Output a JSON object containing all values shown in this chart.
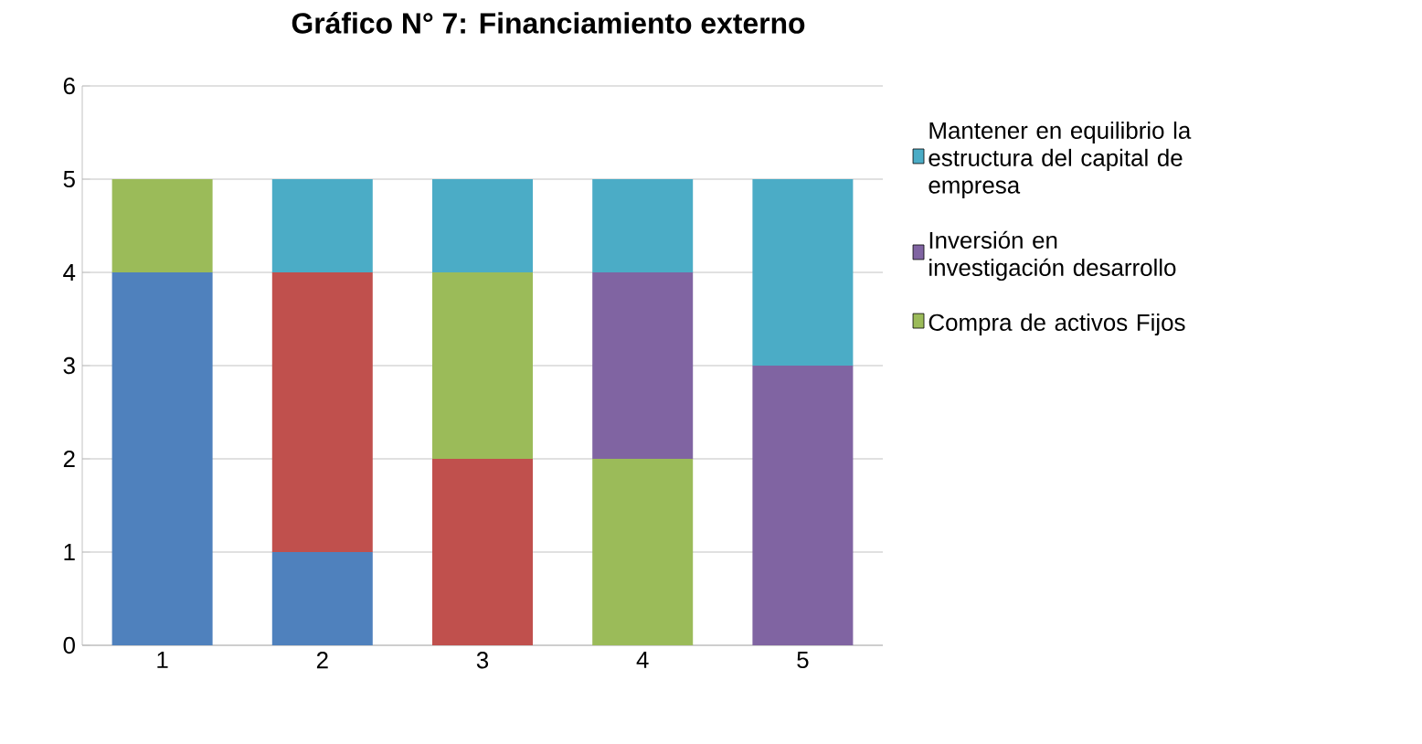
{
  "chart_data": {
    "type": "bar",
    "stacked": true,
    "title": "Gráfico N° 7: Financiamiento externo",
    "categories": [
      "1",
      "2",
      "3",
      "4",
      "5"
    ],
    "series": [
      {
        "color": "#4f81bd",
        "values": [
          4,
          1,
          0,
          0,
          0
        ]
      },
      {
        "color": "#c0504d",
        "values": [
          0,
          3,
          2,
          0,
          0
        ]
      },
      {
        "name": "Compra de activos Fijos",
        "color": "#9bbb59",
        "values": [
          1,
          0,
          2,
          2,
          0
        ]
      },
      {
        "name": "Inversión en investigación desarrollo",
        "color": "#8064a2",
        "values": [
          0,
          0,
          0,
          2,
          3
        ]
      },
      {
        "name": "Mantener en equilibrio la estructura del capital de empresa",
        "color": "#4bacc6",
        "values": [
          0,
          1,
          1,
          1,
          2
        ]
      }
    ],
    "ylim": [
      0,
      6
    ],
    "yticks": [
      0,
      1,
      2,
      3,
      4,
      5,
      6
    ],
    "grid": "y",
    "legend": "right"
  }
}
